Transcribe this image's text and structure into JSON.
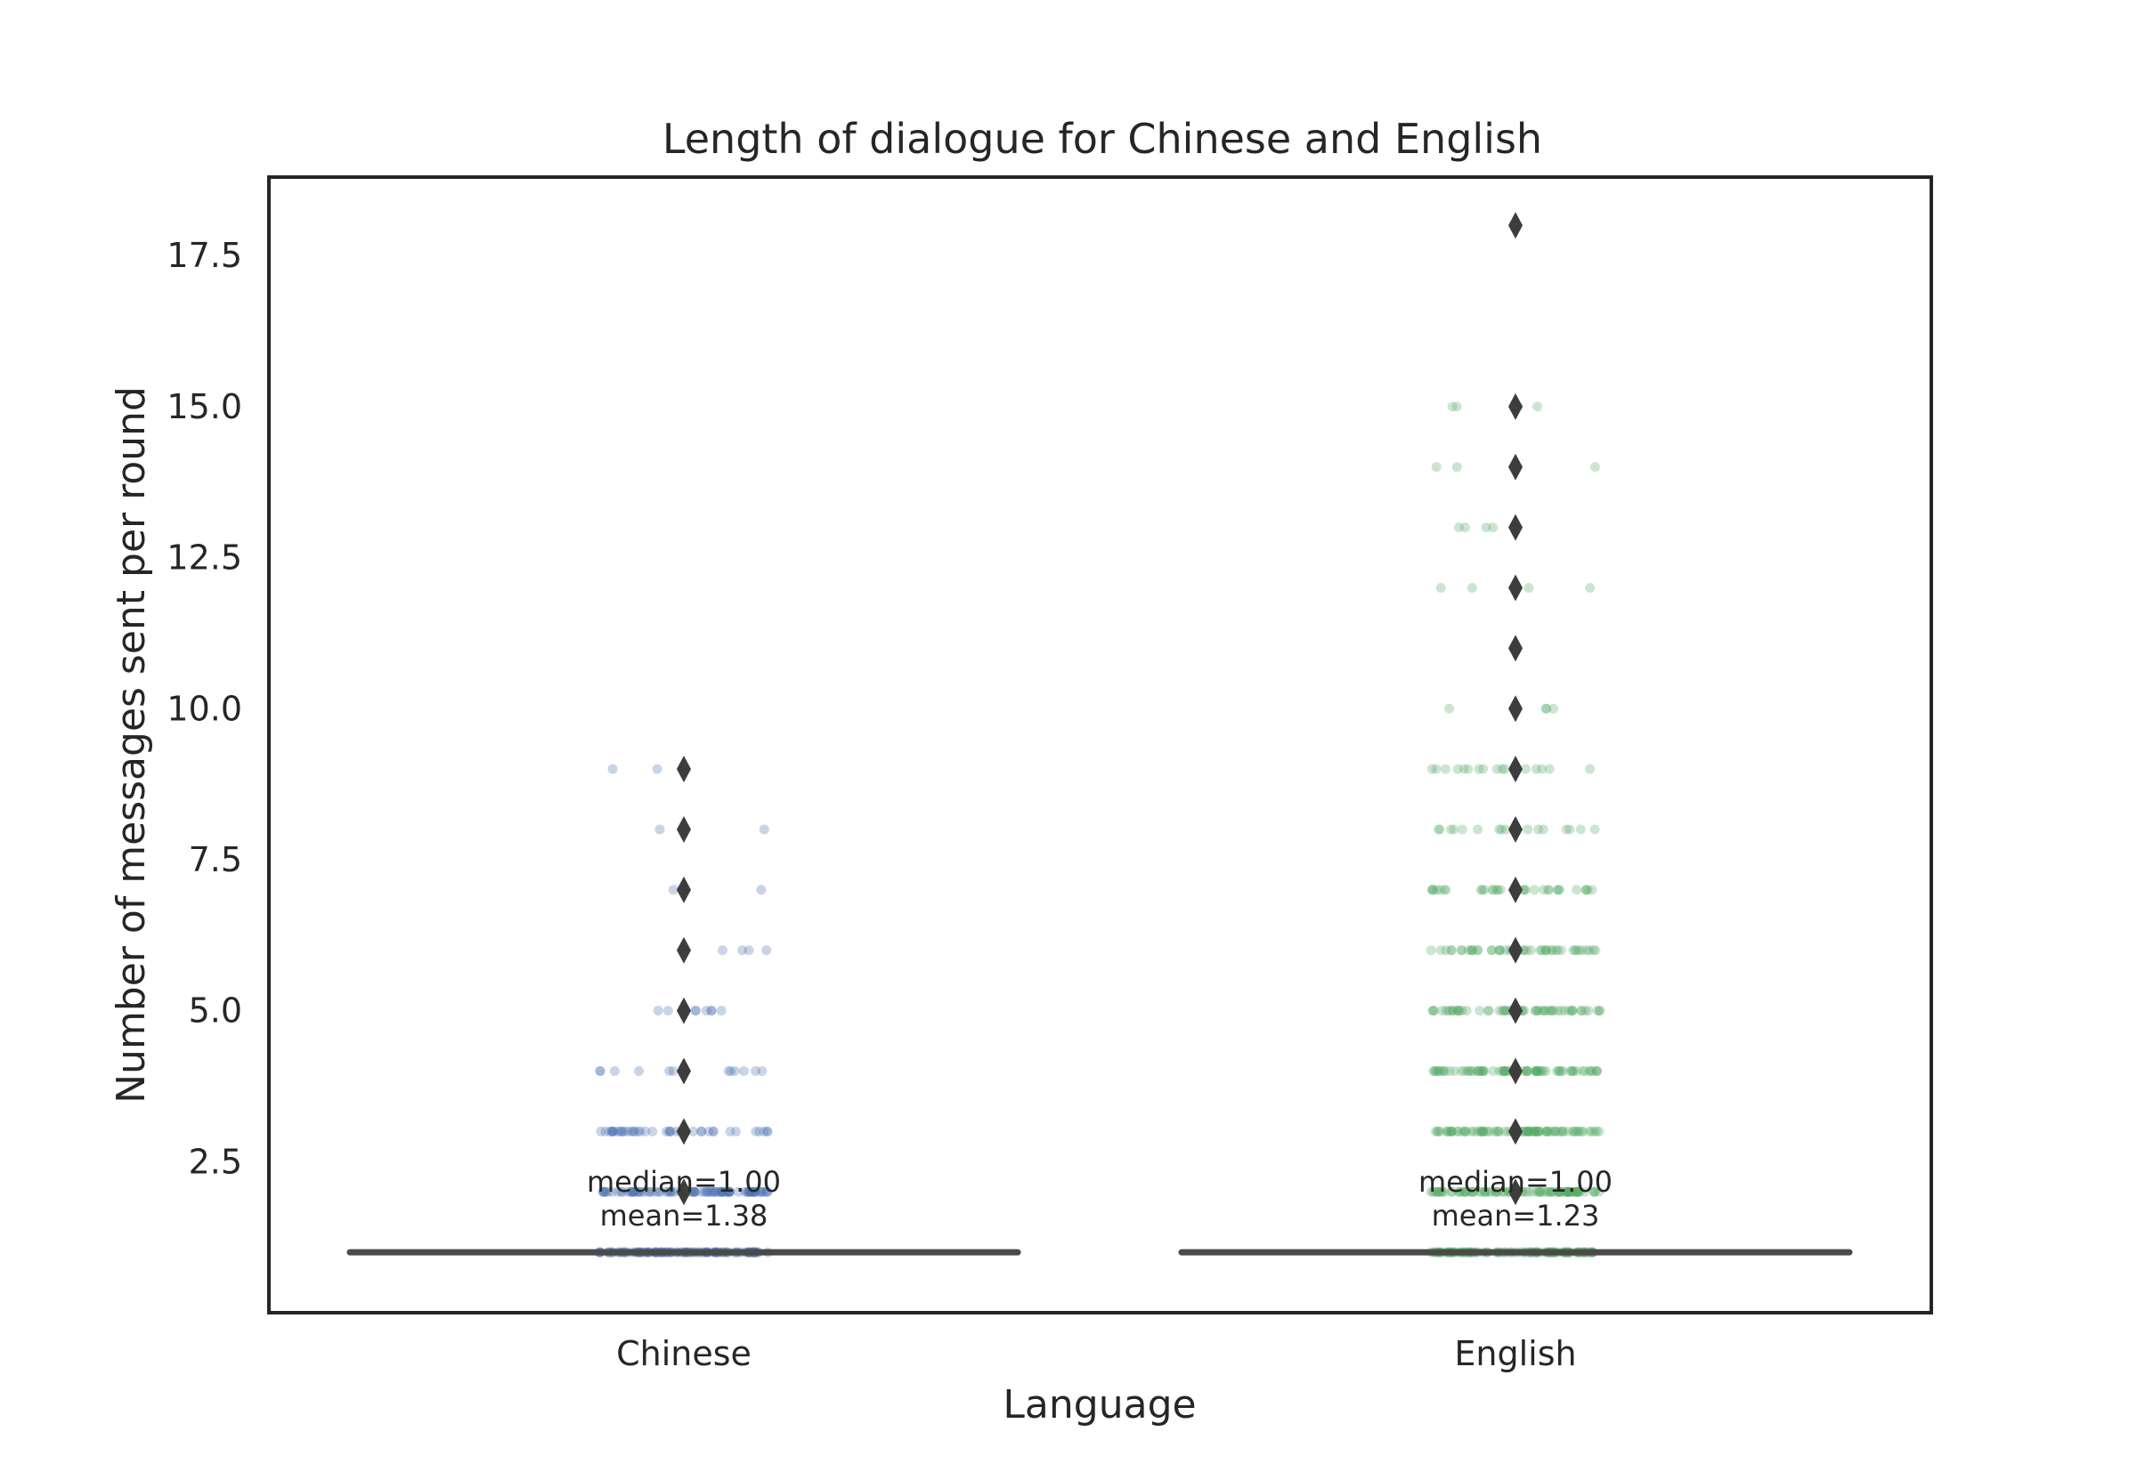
{
  "chart_data": {
    "type": "boxplot",
    "title": "Length of dialogue for Chinese and English",
    "xlabel": "Language",
    "ylabel": "Number of messages sent per round",
    "categories": [
      "Chinese",
      "English"
    ],
    "ylim": [
      0.0,
      18.8
    ],
    "yticks": [
      2.5,
      5.0,
      7.5,
      10.0,
      12.5,
      15.0,
      17.5
    ],
    "ytick_labels": [
      "2.5",
      "5.0",
      "7.5",
      "10.0",
      "12.5",
      "15.0",
      "17.5"
    ],
    "grid": false,
    "legend": "none",
    "series": [
      {
        "category": "Chinese",
        "color": "#4c72b0",
        "median": 1.0,
        "q1": 1.0,
        "q3": 1.0,
        "whisker_low": 1.0,
        "whisker_high": 1.0,
        "outliers": [
          2,
          3,
          4,
          5,
          6,
          7,
          8,
          9
        ],
        "strip_values": [
          1,
          2,
          3,
          4,
          5,
          6,
          7,
          8,
          9
        ],
        "annotation_median": "median=1.00",
        "annotation_mean": "mean=1.38"
      },
      {
        "category": "English",
        "color": "#55a868",
        "median": 1.0,
        "q1": 1.0,
        "q3": 1.0,
        "whisker_low": 1.0,
        "whisker_high": 1.0,
        "outliers": [
          2,
          3,
          4,
          5,
          6,
          7,
          8,
          9,
          10,
          11,
          12,
          13,
          14,
          15,
          18
        ],
        "strip_values": [
          1,
          2,
          3,
          4,
          5,
          6,
          7,
          8,
          9,
          10,
          12,
          13,
          14,
          15
        ],
        "annotation_median": "median=1.00",
        "annotation_mean": "mean=1.23"
      }
    ]
  }
}
